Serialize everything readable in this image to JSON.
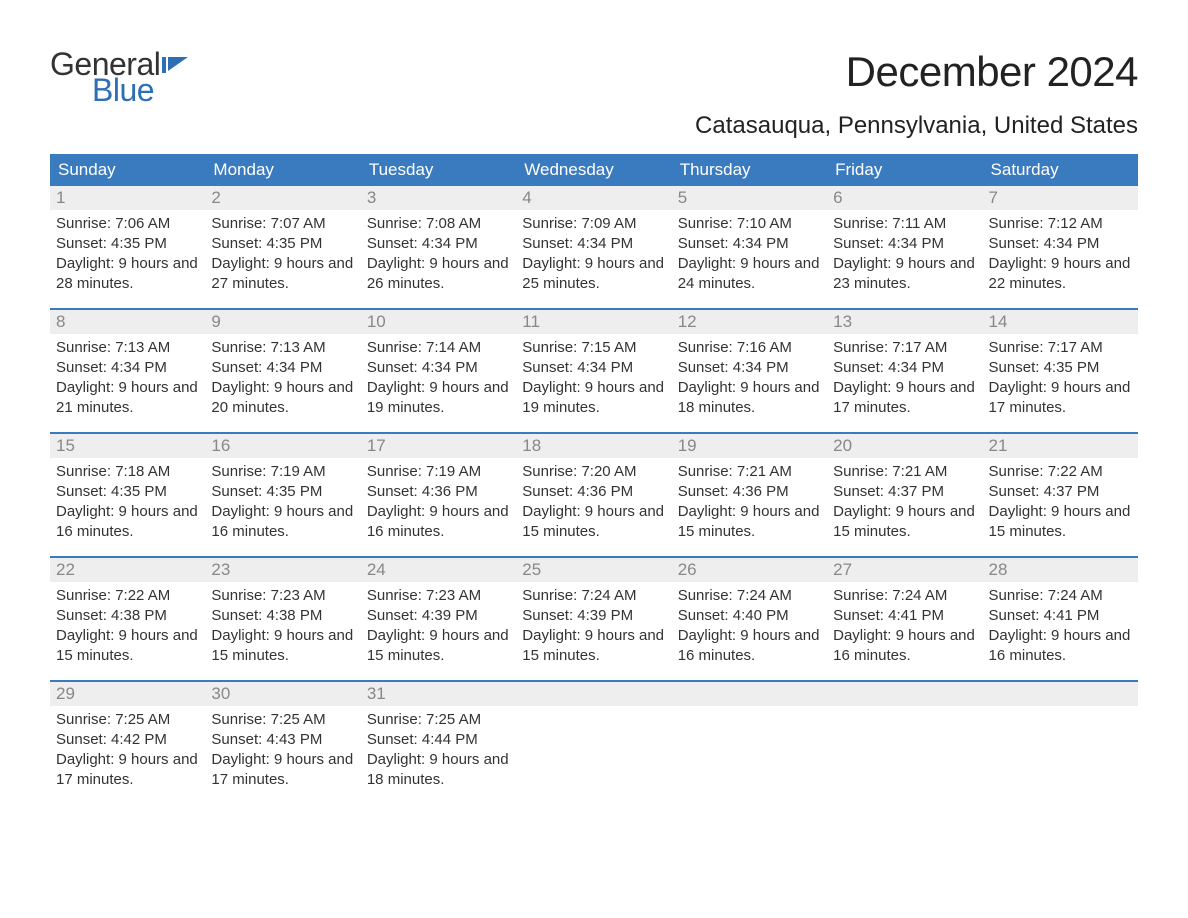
{
  "logo": {
    "text1": "General",
    "text2": "Blue",
    "text_color": "#333333",
    "accent_color": "#2d6fb5"
  },
  "title": "December 2024",
  "subtitle": "Catasauqua, Pennsylvania, United States",
  "colors": {
    "header_bg": "#3a7bbf",
    "header_text": "#ffffff",
    "daynum_bg": "#eeeeee",
    "daynum_text": "#888888",
    "body_text": "#333333",
    "week_divider": "#3a7bbf",
    "page_bg": "#ffffff"
  },
  "typography": {
    "title_fontsize": 42,
    "subtitle_fontsize": 24,
    "weekday_fontsize": 17,
    "daynum_fontsize": 17,
    "content_fontsize": 15
  },
  "weekdays": [
    "Sunday",
    "Monday",
    "Tuesday",
    "Wednesday",
    "Thursday",
    "Friday",
    "Saturday"
  ],
  "labels": {
    "sunrise": "Sunrise:",
    "sunset": "Sunset:",
    "daylight": "Daylight:"
  },
  "days": [
    {
      "n": "1",
      "sr": "7:06 AM",
      "ss": "4:35 PM",
      "dl": "9 hours and 28 minutes."
    },
    {
      "n": "2",
      "sr": "7:07 AM",
      "ss": "4:35 PM",
      "dl": "9 hours and 27 minutes."
    },
    {
      "n": "3",
      "sr": "7:08 AM",
      "ss": "4:34 PM",
      "dl": "9 hours and 26 minutes."
    },
    {
      "n": "4",
      "sr": "7:09 AM",
      "ss": "4:34 PM",
      "dl": "9 hours and 25 minutes."
    },
    {
      "n": "5",
      "sr": "7:10 AM",
      "ss": "4:34 PM",
      "dl": "9 hours and 24 minutes."
    },
    {
      "n": "6",
      "sr": "7:11 AM",
      "ss": "4:34 PM",
      "dl": "9 hours and 23 minutes."
    },
    {
      "n": "7",
      "sr": "7:12 AM",
      "ss": "4:34 PM",
      "dl": "9 hours and 22 minutes."
    },
    {
      "n": "8",
      "sr": "7:13 AM",
      "ss": "4:34 PM",
      "dl": "9 hours and 21 minutes."
    },
    {
      "n": "9",
      "sr": "7:13 AM",
      "ss": "4:34 PM",
      "dl": "9 hours and 20 minutes."
    },
    {
      "n": "10",
      "sr": "7:14 AM",
      "ss": "4:34 PM",
      "dl": "9 hours and 19 minutes."
    },
    {
      "n": "11",
      "sr": "7:15 AM",
      "ss": "4:34 PM",
      "dl": "9 hours and 19 minutes."
    },
    {
      "n": "12",
      "sr": "7:16 AM",
      "ss": "4:34 PM",
      "dl": "9 hours and 18 minutes."
    },
    {
      "n": "13",
      "sr": "7:17 AM",
      "ss": "4:34 PM",
      "dl": "9 hours and 17 minutes."
    },
    {
      "n": "14",
      "sr": "7:17 AM",
      "ss": "4:35 PM",
      "dl": "9 hours and 17 minutes."
    },
    {
      "n": "15",
      "sr": "7:18 AM",
      "ss": "4:35 PM",
      "dl": "9 hours and 16 minutes."
    },
    {
      "n": "16",
      "sr": "7:19 AM",
      "ss": "4:35 PM",
      "dl": "9 hours and 16 minutes."
    },
    {
      "n": "17",
      "sr": "7:19 AM",
      "ss": "4:36 PM",
      "dl": "9 hours and 16 minutes."
    },
    {
      "n": "18",
      "sr": "7:20 AM",
      "ss": "4:36 PM",
      "dl": "9 hours and 15 minutes."
    },
    {
      "n": "19",
      "sr": "7:21 AM",
      "ss": "4:36 PM",
      "dl": "9 hours and 15 minutes."
    },
    {
      "n": "20",
      "sr": "7:21 AM",
      "ss": "4:37 PM",
      "dl": "9 hours and 15 minutes."
    },
    {
      "n": "21",
      "sr": "7:22 AM",
      "ss": "4:37 PM",
      "dl": "9 hours and 15 minutes."
    },
    {
      "n": "22",
      "sr": "7:22 AM",
      "ss": "4:38 PM",
      "dl": "9 hours and 15 minutes."
    },
    {
      "n": "23",
      "sr": "7:23 AM",
      "ss": "4:38 PM",
      "dl": "9 hours and 15 minutes."
    },
    {
      "n": "24",
      "sr": "7:23 AM",
      "ss": "4:39 PM",
      "dl": "9 hours and 15 minutes."
    },
    {
      "n": "25",
      "sr": "7:24 AM",
      "ss": "4:39 PM",
      "dl": "9 hours and 15 minutes."
    },
    {
      "n": "26",
      "sr": "7:24 AM",
      "ss": "4:40 PM",
      "dl": "9 hours and 16 minutes."
    },
    {
      "n": "27",
      "sr": "7:24 AM",
      "ss": "4:41 PM",
      "dl": "9 hours and 16 minutes."
    },
    {
      "n": "28",
      "sr": "7:24 AM",
      "ss": "4:41 PM",
      "dl": "9 hours and 16 minutes."
    },
    {
      "n": "29",
      "sr": "7:25 AM",
      "ss": "4:42 PM",
      "dl": "9 hours and 17 minutes."
    },
    {
      "n": "30",
      "sr": "7:25 AM",
      "ss": "4:43 PM",
      "dl": "9 hours and 17 minutes."
    },
    {
      "n": "31",
      "sr": "7:25 AM",
      "ss": "4:44 PM",
      "dl": "9 hours and 18 minutes."
    }
  ],
  "grid": {
    "start_weekday": 0,
    "total_cells": 35
  }
}
